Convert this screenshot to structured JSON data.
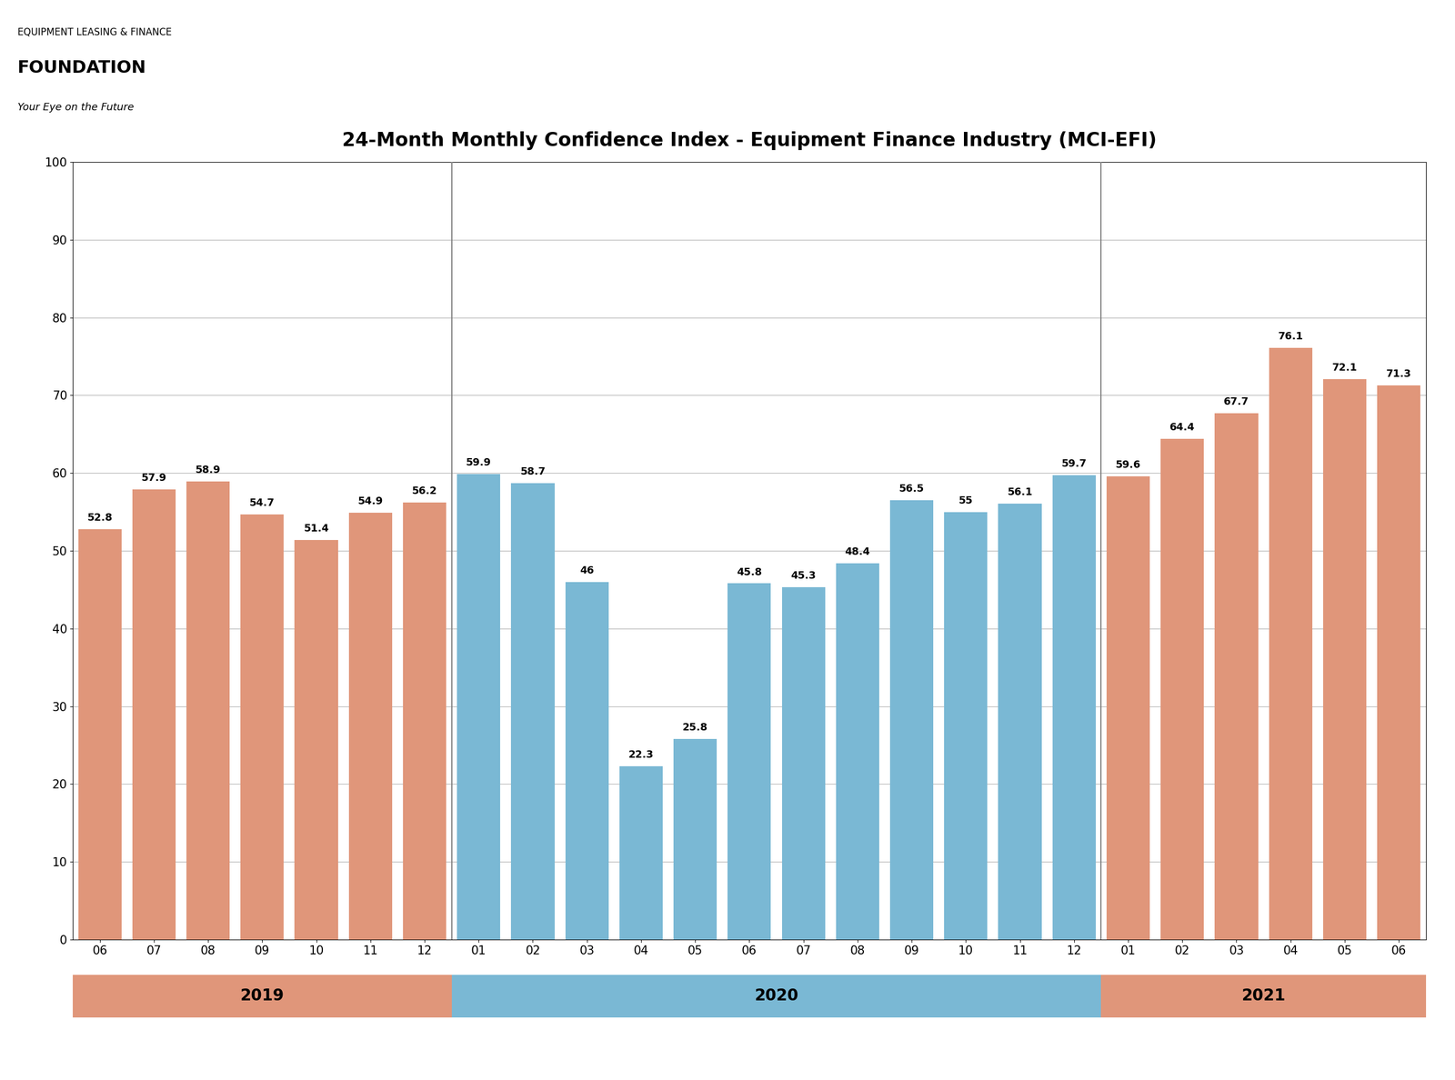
{
  "chart_data": {
    "type": "bar",
    "title": "24-Month Monthly Confidence Index - Equipment Finance Industry (MCI-EFI)",
    "categories": [
      "06",
      "07",
      "08",
      "09",
      "10",
      "11",
      "12",
      "01",
      "02",
      "03",
      "04",
      "05",
      "06",
      "07",
      "08",
      "09",
      "10",
      "11",
      "12",
      "01",
      "02",
      "03",
      "04",
      "05",
      "06"
    ],
    "values": [
      52.8,
      57.9,
      58.9,
      54.7,
      51.4,
      54.9,
      56.2,
      59.9,
      58.7,
      46,
      22.3,
      25.8,
      45.8,
      45.3,
      48.4,
      56.5,
      55.0,
      56.1,
      59.7,
      59.6,
      64.4,
      67.7,
      76.1,
      72.1,
      71.3
    ],
    "value_labels": [
      "52.8",
      "57.9",
      "58.9",
      "54.7",
      "51.4",
      "54.9",
      "56.2",
      "59.9",
      "58.7",
      "46",
      "22.3",
      "25.8",
      "45.8",
      "45.3",
      "48.4",
      "56.5",
      "55",
      "56.1",
      "59.7",
      "59.6",
      "64.4",
      "67.7",
      "76.1",
      "72.1",
      "71.3"
    ],
    "colors": [
      "#e0967a",
      "#e0967a",
      "#e0967a",
      "#e0967a",
      "#e0967a",
      "#e0967a",
      "#e0967a",
      "#7ab8d4",
      "#7ab8d4",
      "#7ab8d4",
      "#7ab8d4",
      "#7ab8d4",
      "#7ab8d4",
      "#7ab8d4",
      "#7ab8d4",
      "#7ab8d4",
      "#7ab8d4",
      "#7ab8d4",
      "#7ab8d4",
      "#e0967a",
      "#e0967a",
      "#e0967a",
      "#e0967a",
      "#e0967a",
      "#e0967a"
    ],
    "annotations": [
      "2019",
      "2020",
      "2021",
      "EQUIPMENT LEASING & FINANCE",
      "FOUNDATION",
      "Your Eye on the Future"
    ],
    "ylim": [
      0,
      100
    ],
    "yticks": [
      0,
      10,
      20,
      30,
      40,
      50,
      60,
      70,
      80,
      90,
      100
    ],
    "grid": true,
    "data_labels": true
  }
}
